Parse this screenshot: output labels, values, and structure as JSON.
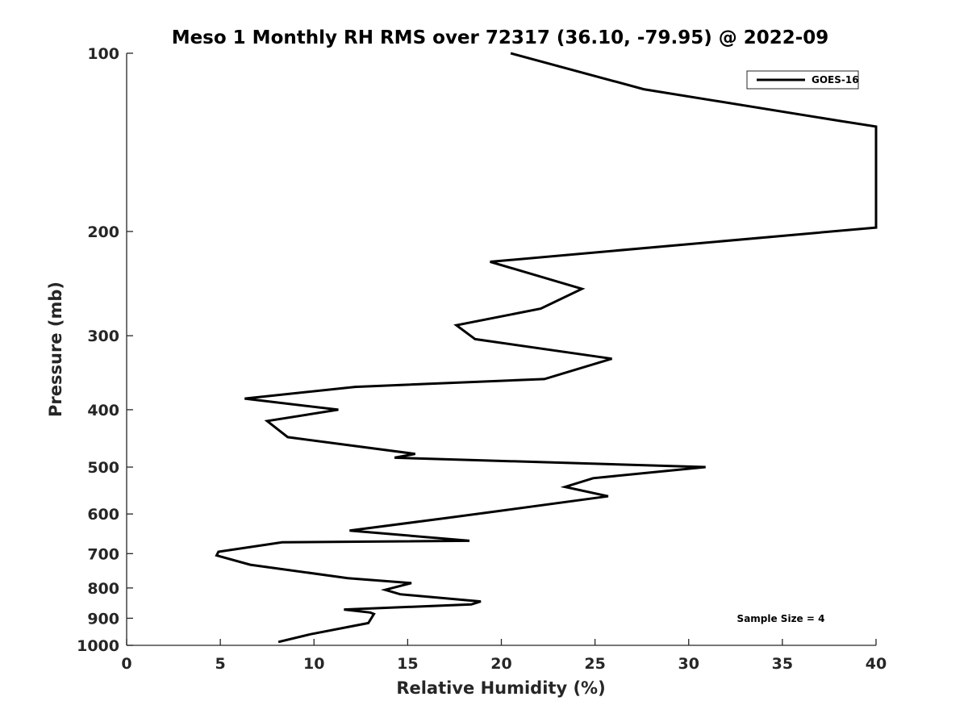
{
  "chart_data": {
    "type": "line",
    "title": "Meso 1 Monthly RH RMS over 72317 (36.10, -79.95) @ 2022-09",
    "xlabel": "Relative Humidity (%)",
    "ylabel": "Pressure (mb)",
    "xlim": [
      0,
      40
    ],
    "ylim": [
      1000,
      100
    ],
    "y_scale": "log",
    "x_ticks": [
      "0",
      "5",
      "10",
      "15",
      "20",
      "25",
      "30",
      "35",
      "40"
    ],
    "y_ticks": [
      "100",
      "200",
      "300",
      "400",
      "500",
      "600",
      "700",
      "800",
      "900",
      "1000"
    ],
    "legend": {
      "placement": "top-right",
      "entries": [
        "GOES-16"
      ]
    },
    "annotation": "Sample Size = 4",
    "grid": false,
    "series": [
      {
        "name": "GOES-16",
        "color": "#000000",
        "x": [
          20.5,
          27.6,
          38.0,
          40.0,
          40.0,
          19.4,
          24.3,
          22.1,
          17.6,
          18.6,
          25.9,
          22.3,
          12.2,
          6.3,
          11.3,
          7.5,
          8.6,
          15.4,
          14.3,
          30.9,
          24.9,
          23.4,
          25.7,
          19.9,
          17.0,
          11.9,
          18.3,
          8.3,
          4.9,
          4.8,
          6.6,
          11.8,
          15.2,
          13.8,
          14.6,
          18.9,
          18.4,
          11.6,
          13.0,
          13.2,
          12.9,
          11.9,
          9.8,
          8.1
        ],
        "y": [
          100,
          115,
          130,
          133,
          197,
          225,
          250,
          270,
          288,
          304,
          328,
          355,
          366,
          383,
          400,
          418,
          445,
          475,
          482,
          500,
          522,
          540,
          560,
          593,
          610,
          640,
          666,
          670,
          695,
          705,
          731,
          770,
          785,
          806,
          820,
          843,
          853,
          870,
          880,
          885,
          917,
          930,
          958,
          987
        ]
      }
    ]
  }
}
